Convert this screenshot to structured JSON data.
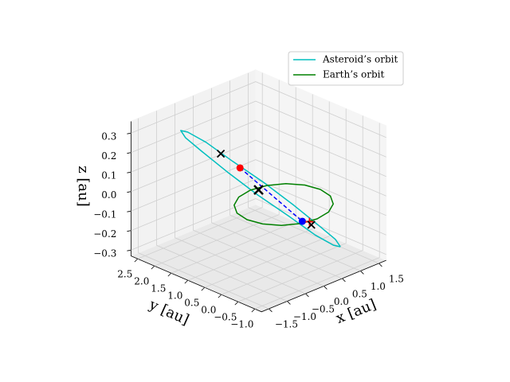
{
  "chart_data": {
    "type": "line3d",
    "xlabel": "x [au]",
    "ylabel": "y [au]",
    "zlabel": "z [au]",
    "xlim": [
      -1.7,
      1.7
    ],
    "ylim": [
      -1.2,
      2.7
    ],
    "zlim": [
      -0.33,
      0.36
    ],
    "xticks": [
      {
        "value": -1.5,
        "label": "−1.5"
      },
      {
        "value": -1.0,
        "label": "−1.0"
      },
      {
        "value": -0.5,
        "label": "−0.5"
      },
      {
        "value": 0,
        "label": "0.0"
      },
      0.5,
      {
        "value": 1.0,
        "label": "1.0"
      },
      1.5
    ],
    "yticks": [
      {
        "value": -1.0,
        "label": "−1.0"
      },
      {
        "value": -0.5,
        "label": "−0.5"
      },
      {
        "value": 0,
        "label": "0.0"
      },
      0.5,
      {
        "value": 1.0,
        "label": "1.0"
      },
      1.5,
      {
        "value": 2.0,
        "label": "2.0"
      },
      2.5
    ],
    "zticks": [
      {
        "value": -0.3,
        "label": "−0.3"
      },
      {
        "value": -0.2,
        "label": "−0.2"
      },
      {
        "value": -0.1,
        "label": "−0.1"
      },
      {
        "value": 0,
        "label": "0.0"
      },
      0.1,
      0.2,
      0.3
    ],
    "grid": true,
    "legend": "upper right",
    "series": [
      {
        "name": "Asteroid’s orbit",
        "color": "#00bfbf",
        "x": [
          1.0,
          0.98,
          0.82,
          0.56,
          0.22,
          -0.13,
          -0.45,
          -0.69,
          -0.8,
          -0.78,
          -0.62,
          -0.36,
          -0.02,
          0.33,
          0.65,
          0.89,
          1.0
        ],
        "y": [
          -0.6,
          -0.47,
          -0.15,
          0.31,
          0.85,
          1.38,
          1.83,
          2.11,
          2.2,
          2.08,
          1.76,
          1.29,
          0.75,
          0.22,
          -0.23,
          -0.51,
          -0.6
        ],
        "z": [
          -0.25,
          -0.22,
          -0.16,
          -0.07,
          0.035,
          0.13,
          0.22,
          0.27,
          0.28,
          0.25,
          0.19,
          0.1,
          -0.005,
          -0.1,
          -0.19,
          -0.24,
          -0.25
        ]
      },
      {
        "name": "Earth’s orbit",
        "color": "#008000",
        "x": [
          1,
          0.924,
          0.707,
          0.383,
          0,
          -0.383,
          -0.707,
          -0.924,
          -1,
          -0.924,
          -0.707,
          -0.383,
          0,
          0.383,
          0.707,
          0.924,
          1
        ],
        "y": [
          0,
          0.383,
          0.707,
          0.924,
          1,
          0.924,
          0.707,
          0.383,
          0,
          -0.383,
          -0.707,
          -0.924,
          -1,
          -0.924,
          -0.707,
          -0.383,
          0
        ],
        "z": [
          0,
          0,
          0,
          0,
          0,
          0,
          0,
          0,
          0,
          0,
          0,
          0,
          0,
          0,
          0,
          0,
          0
        ]
      }
    ],
    "segment": {
      "color": "#0000ff",
      "x": [
        -0.05,
        0.6
      ],
      "y": [
        1.25,
        0.1
      ],
      "z": [
        0.1,
        -0.14
      ]
    },
    "markers": [
      {
        "marker": "dot",
        "color": "#ff0000",
        "x": -0.05,
        "y": 1.25,
        "z": 0.1
      },
      {
        "marker": "dot",
        "color": "#0000ff",
        "x": 0.6,
        "y": 0.1,
        "z": -0.14
      },
      {
        "marker": "plus",
        "color": "#ff0000",
        "x": 0.75,
        "y": 0.05,
        "z": -0.15
      },
      {
        "marker": "cross",
        "color": "#000000",
        "x": -0.3,
        "y": 1.55,
        "z": 0.17
      },
      {
        "marker": "bigcross",
        "color": "#000000",
        "x": 0,
        "y": 0.75,
        "z": 0.02
      },
      {
        "marker": "cross",
        "color": "#000000",
        "x": 0.8,
        "y": 0.05,
        "z": -0.17
      }
    ]
  }
}
